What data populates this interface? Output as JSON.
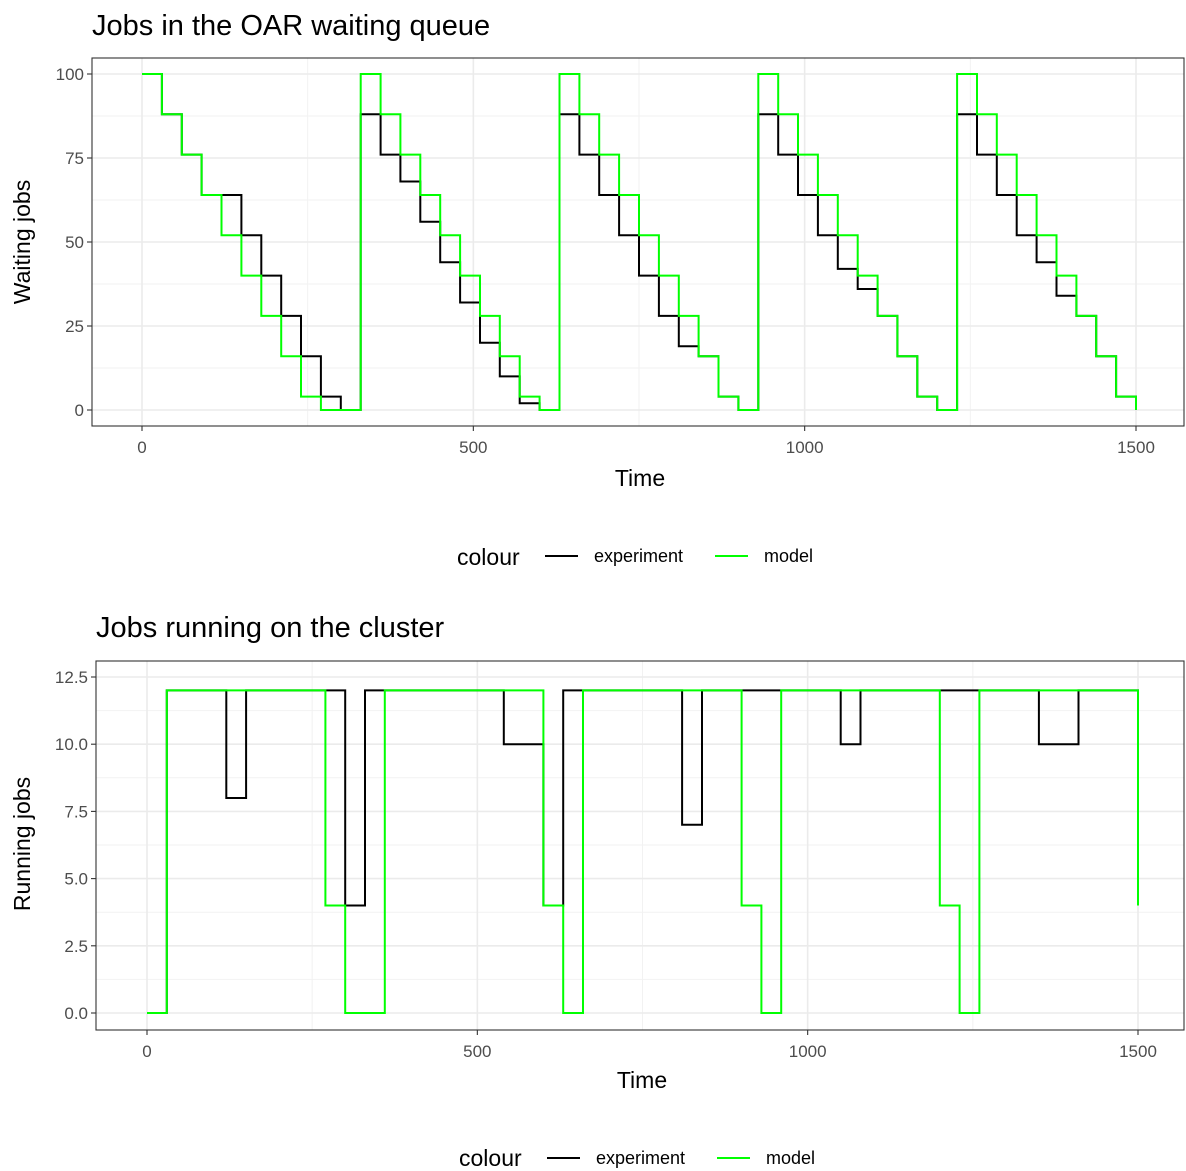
{
  "chart_data": [
    {
      "type": "line",
      "step": true,
      "title": "Jobs in the OAR waiting queue",
      "xlabel": "Time",
      "ylabel": "Waiting jobs",
      "xlim": [
        0,
        1500
      ],
      "ylim": [
        0,
        100
      ],
      "x_ticks": [
        0,
        500,
        1000,
        1500
      ],
      "x_tick_labels": [
        "0",
        "500",
        "1000",
        "1500"
      ],
      "y_ticks": [
        0,
        25,
        50,
        75,
        100
      ],
      "y_tick_labels": [
        "0",
        "25",
        "50",
        "75",
        "100"
      ],
      "grid": true,
      "legend": {
        "title": "colour",
        "position": "bottom"
      },
      "series": [
        {
          "name": "experiment",
          "color": "#000000",
          "x": [
            0,
            30,
            60,
            90,
            120,
            150,
            180,
            210,
            240,
            270,
            300,
            330,
            360,
            390,
            420,
            450,
            480,
            510,
            540,
            570,
            600,
            630,
            660,
            690,
            720,
            750,
            780,
            810,
            840,
            870,
            900,
            930,
            960,
            990,
            1020,
            1050,
            1080,
            1110,
            1140,
            1170,
            1200,
            1230,
            1260,
            1290,
            1320,
            1350,
            1380,
            1410,
            1440,
            1470,
            1500
          ],
          "y": [
            100,
            88,
            76,
            64,
            64,
            52,
            40,
            28,
            16,
            4,
            0,
            88,
            76,
            68,
            56,
            44,
            32,
            20,
            10,
            2,
            0,
            88,
            76,
            64,
            52,
            40,
            28,
            19,
            16,
            4,
            0,
            88,
            76,
            64,
            52,
            42,
            36,
            28,
            16,
            4,
            0,
            88,
            76,
            64,
            52,
            44,
            34,
            28,
            16,
            4,
            0
          ]
        },
        {
          "name": "model",
          "color": "#00ff00",
          "x": [
            0,
            30,
            60,
            90,
            120,
            150,
            180,
            210,
            240,
            270,
            300,
            330,
            360,
            390,
            420,
            450,
            480,
            510,
            540,
            570,
            600,
            630,
            660,
            690,
            720,
            750,
            780,
            810,
            840,
            870,
            900,
            930,
            960,
            990,
            1020,
            1050,
            1080,
            1110,
            1140,
            1170,
            1200,
            1230,
            1260,
            1290,
            1320,
            1350,
            1380,
            1410,
            1440,
            1470,
            1500
          ],
          "y": [
            100,
            88,
            76,
            64,
            52,
            40,
            28,
            16,
            4,
            0,
            0,
            100,
            88,
            76,
            64,
            52,
            40,
            28,
            16,
            4,
            0,
            100,
            88,
            76,
            64,
            52,
            40,
            28,
            16,
            4,
            0,
            100,
            88,
            76,
            64,
            52,
            40,
            28,
            16,
            4,
            0,
            100,
            88,
            76,
            64,
            52,
            40,
            28,
            16,
            4,
            0
          ]
        }
      ]
    },
    {
      "type": "line",
      "step": true,
      "title": "Jobs running on the cluster",
      "xlabel": "Time",
      "ylabel": "Running jobs",
      "xlim": [
        0,
        1500
      ],
      "ylim": [
        0,
        12.5
      ],
      "x_ticks": [
        0,
        500,
        1000,
        1500
      ],
      "x_tick_labels": [
        "0",
        "500",
        "1000",
        "1500"
      ],
      "y_ticks": [
        0,
        2.5,
        5,
        7.5,
        10,
        12.5
      ],
      "y_tick_labels": [
        "0.0",
        "2.5",
        "5.0",
        "7.5",
        "10.0",
        "12.5"
      ],
      "grid": true,
      "legend": {
        "title": "colour",
        "position": "bottom"
      },
      "series": [
        {
          "name": "experiment",
          "color": "#000000",
          "x": [
            0,
            30,
            120,
            150,
            300,
            330,
            540,
            600,
            630,
            810,
            840,
            930,
            1050,
            1080,
            1230,
            1350,
            1410,
            1500
          ],
          "y": [
            0,
            12,
            8,
            12,
            4,
            12,
            10,
            4,
            12,
            7,
            12,
            12,
            10,
            12,
            12,
            10,
            12,
            4
          ]
        },
        {
          "name": "model",
          "color": "#00ff00",
          "x": [
            0,
            30,
            270,
            300,
            360,
            600,
            630,
            660,
            900,
            930,
            960,
            1200,
            1230,
            1260,
            1500
          ],
          "y": [
            0,
            12,
            4,
            0,
            12,
            4,
            0,
            12,
            4,
            0,
            12,
            4,
            0,
            12,
            4
          ]
        }
      ]
    }
  ]
}
